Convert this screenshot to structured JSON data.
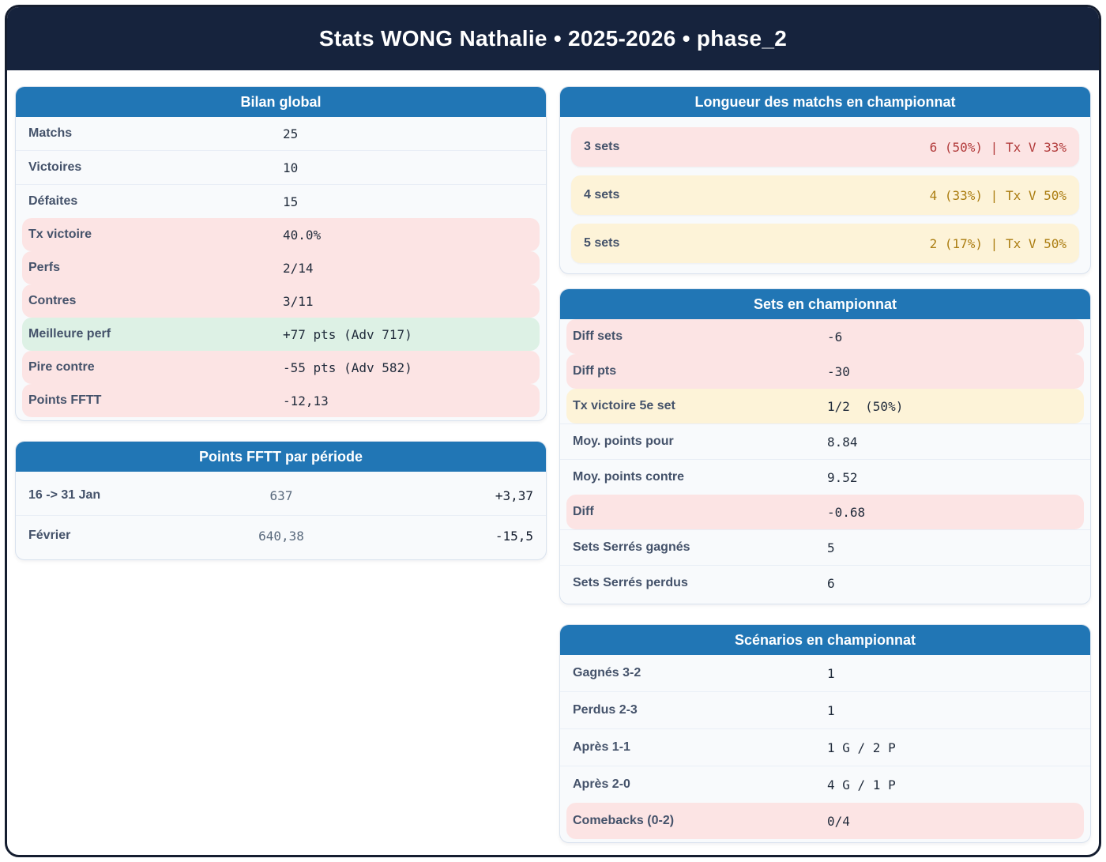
{
  "header": {
    "title": "Stats WONG Nathalie • 2025-2026 • phase_2"
  },
  "colors": {
    "header_navy": "#16233d",
    "card_header_blue": "#2176b5",
    "negative_row_pink": "#fce4e4",
    "positive_row_green": "#ddf1e5",
    "neutral_row_yellow": "#fdf3d8",
    "negative_text_red": "#b23b3b",
    "warning_text_amber": "#ab7d11"
  },
  "bilan": {
    "title": "Bilan global",
    "rows": [
      {
        "label": "Matchs",
        "value": "25"
      },
      {
        "label": "Victoires",
        "value": "10"
      },
      {
        "label": "Défaites",
        "value": "15"
      },
      {
        "label": "Tx victoire",
        "value": "40.0%"
      },
      {
        "label": "Perfs",
        "value": "2/14"
      },
      {
        "label": "Contres",
        "value": "3/11"
      },
      {
        "label": "Meilleure perf",
        "value": "+77 pts (Adv 717)"
      },
      {
        "label": "Pire contre",
        "value": "-55 pts (Adv 582)"
      },
      {
        "label": "Points FFTT",
        "value": "-12,13"
      }
    ]
  },
  "points_periode": {
    "title": "Points FFTT par période",
    "rows": [
      {
        "label": "16 -> 31 Jan",
        "points": "637",
        "delta": "+3,37"
      },
      {
        "label": "Février",
        "points": "640,38",
        "delta": "-15,5"
      }
    ]
  },
  "longueur": {
    "title": "Longueur des matchs en championnat",
    "rows": [
      {
        "label": "3 sets",
        "value": "6 (50%) | Tx V 33%"
      },
      {
        "label": "4 sets",
        "value": "4 (33%) | Tx V 50%"
      },
      {
        "label": "5 sets",
        "value": "2 (17%) | Tx V 50%"
      }
    ]
  },
  "sets": {
    "title": "Sets en championnat",
    "rows": [
      {
        "label": "Diff sets",
        "value": "-6"
      },
      {
        "label": "Diff pts",
        "value": "-30"
      },
      {
        "label": "Tx victoire 5e set",
        "value": "1/2  (50%)"
      },
      {
        "label": "Moy. points pour",
        "value": "8.84"
      },
      {
        "label": "Moy. points contre",
        "value": "9.52"
      },
      {
        "label": "Diff",
        "value": "-0.68"
      },
      {
        "label": "Sets Serrés gagnés",
        "value": "5"
      },
      {
        "label": "Sets Serrés perdus",
        "value": "6"
      }
    ]
  },
  "scenarios": {
    "title": "Scénarios en championnat",
    "rows": [
      {
        "label": "Gagnés 3-2",
        "value": "1"
      },
      {
        "label": "Perdus 2-3",
        "value": "1"
      },
      {
        "label": "Après 1-1",
        "value": "1 G / 2 P"
      },
      {
        "label": "Après 2-0",
        "value": "4 G / 1 P"
      },
      {
        "label": "Comebacks (0-2)",
        "value": "0/4"
      }
    ]
  }
}
